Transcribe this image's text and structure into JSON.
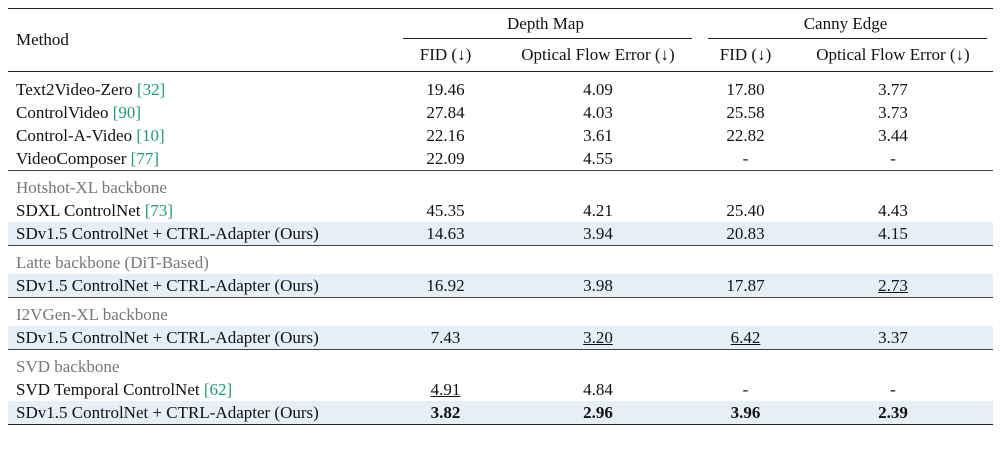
{
  "header": {
    "method": "Method",
    "groups": [
      {
        "title": "Depth Map",
        "columns": [
          "FID (↓)",
          "Optical Flow Error (↓)"
        ]
      },
      {
        "title": "Canny Edge",
        "columns": [
          "FID (↓)",
          "Optical Flow Error (↓)"
        ]
      }
    ]
  },
  "sections": [
    {
      "rows": [
        {
          "method": "Text2Video-Zero",
          "cite": "[32]",
          "values": [
            "19.46",
            "4.09",
            "17.80",
            "3.77"
          ]
        },
        {
          "method": "ControlVideo",
          "cite": "[90]",
          "values": [
            "27.84",
            "4.03",
            "25.58",
            "3.73"
          ]
        },
        {
          "method": "Control-A-Video",
          "cite": "[10]",
          "values": [
            "22.16",
            "3.61",
            "22.82",
            "3.44"
          ]
        },
        {
          "method": "VideoComposer",
          "cite": "[77]",
          "values": [
            "22.09",
            "4.55",
            "-",
            "-"
          ]
        }
      ]
    },
    {
      "title": "Hotshot-XL backbone",
      "rows": [
        {
          "method": "SDXL ControlNet",
          "cite": "[73]",
          "values": [
            "45.35",
            "4.21",
            "25.40",
            "4.43"
          ]
        },
        {
          "method": "SDv1.5 ControlNet + CTRL-Adapter (Ours)",
          "values": [
            "14.63",
            "3.94",
            "20.83",
            "4.15"
          ],
          "highlight": true
        }
      ]
    },
    {
      "title": "Latte backbone (DiT-Based)",
      "rows": [
        {
          "method": "SDv1.5 ControlNet + CTRL-Adapter (Ours)",
          "values": [
            "16.92",
            "3.98",
            "17.87",
            "2.73"
          ],
          "highlight": true,
          "underline": [
            3
          ]
        }
      ]
    },
    {
      "title": "I2VGen-XL backbone",
      "rows": [
        {
          "method": "SDv1.5 ControlNet + CTRL-Adapter (Ours)",
          "values": [
            "7.43",
            "3.20",
            "6.42",
            "3.37"
          ],
          "highlight": true,
          "underline": [
            1,
            2
          ]
        }
      ]
    },
    {
      "title": "SVD backbone",
      "rows": [
        {
          "method": "SVD Temporal ControlNet",
          "cite": "[62]",
          "values": [
            "4.91",
            "4.84",
            "-",
            "-"
          ],
          "underline": [
            0
          ]
        },
        {
          "method": "SDv1.5 ControlNet + CTRL-Adapter (Ours)",
          "values": [
            "3.82",
            "2.96",
            "3.96",
            "2.39"
          ],
          "highlight": true,
          "bold": true
        }
      ]
    }
  ]
}
